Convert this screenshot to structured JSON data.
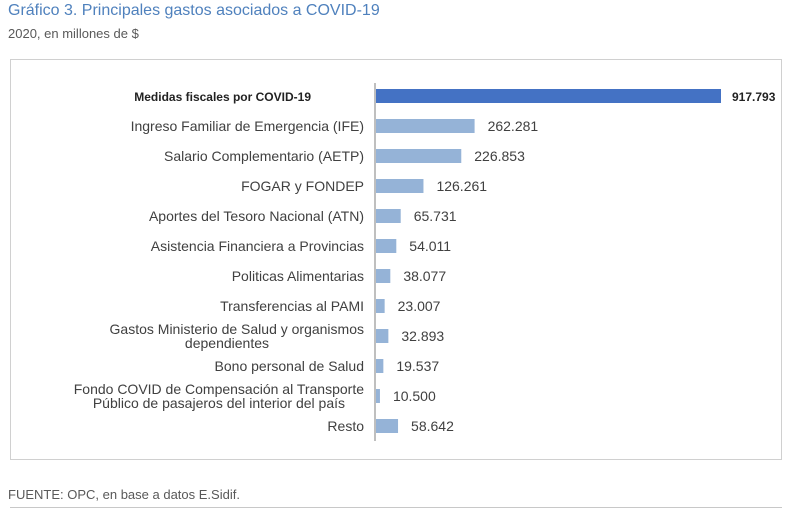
{
  "header": {
    "title": "Gráfico 3. Principales gastos asociados a COVID-19",
    "subtitle": "2020, en millones de $"
  },
  "footer": {
    "source": "FUENTE: OPC, en base a datos E.Sidif."
  },
  "colors": {
    "highlight_bar": "#4472c4",
    "bar": "#95b3d7",
    "axis": "#7f7f7f",
    "title": "#4f81bd"
  },
  "chart_data": {
    "type": "bar",
    "orientation": "horizontal",
    "title": "Gráfico 3. Principales gastos asociados a COVID-19",
    "subtitle": "2020, en millones de $",
    "xlabel": "",
    "ylabel": "",
    "xlim": [
      0,
      917793
    ],
    "grid": false,
    "categories": [
      [
        "Medidas fiscales por COVID-19"
      ],
      [
        "Ingreso Familiar de Emergencia (IFE)"
      ],
      [
        "Salario Complementario (AETP)"
      ],
      [
        "FOGAR y FONDEP"
      ],
      [
        "Aportes del Tesoro Nacional (ATN)"
      ],
      [
        "Asistencia Financiera a Provincias"
      ],
      [
        "Politicas Alimentarias"
      ],
      [
        "Transferencias al PAMI"
      ],
      [
        "Gastos Ministerio de Salud y organismos",
        "dependientes"
      ],
      [
        "Bono personal de Salud"
      ],
      [
        "Fondo COVID de Compensación al Transporte",
        "Público de pasajeros del interior del país"
      ],
      [
        "Resto"
      ]
    ],
    "values": [
      917793,
      262281,
      226853,
      126261,
      65731,
      54011,
      38077,
      23007,
      32893,
      19537,
      10500,
      58642
    ],
    "value_labels": [
      "917.793",
      "262.281",
      "226.853",
      "126.261",
      "65.731",
      "54.011",
      "38.077",
      "23.007",
      "32.893",
      "19.537",
      "10.500",
      "58.642"
    ],
    "highlight_index": 0
  }
}
